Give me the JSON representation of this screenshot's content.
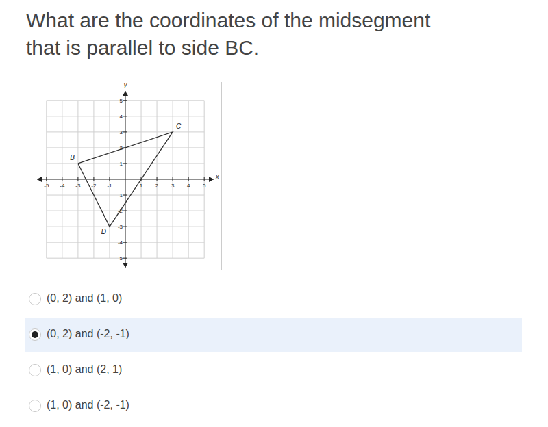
{
  "question": [
    "What are the coordinates of the midsegment",
    "that is parallel to side BC."
  ],
  "chart_data": {
    "type": "line",
    "x_label": "x",
    "y_label": "y",
    "xlim": [
      -5.6,
      5.6
    ],
    "ylim": [
      -5.6,
      5.6
    ],
    "xticks": [
      -5,
      -4,
      -3,
      -2,
      -1,
      1,
      2,
      3,
      4,
      5
    ],
    "yticks": [
      -5,
      -4,
      -3,
      -2,
      -1,
      1,
      2,
      3,
      4,
      5
    ],
    "grid": true,
    "x": [
      -3,
      3,
      -1
    ],
    "values": [
      1,
      3,
      -3
    ],
    "labels": [
      "B",
      "C",
      "D"
    ],
    "color": "#333333"
  },
  "options": [
    "(0, 2) and (1, 0)",
    "(0, 2) and (-2, -1)",
    "(1, 0) and (2, 1)",
    "(1, 0) and (-2, -1)"
  ],
  "selected": 1
}
